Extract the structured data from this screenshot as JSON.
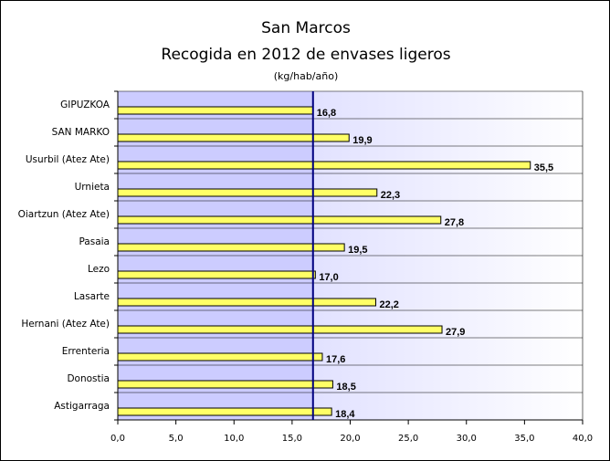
{
  "title": "San Marcos",
  "subtitle": "Recogida en 2012 de envases ligeros",
  "unit": "(kg/hab/año)",
  "colors": {
    "bar_fill": "#ffff66",
    "reference_line": "#000080",
    "plot_band": "#ccccff"
  },
  "chart_data": {
    "type": "bar",
    "orientation": "horizontal",
    "categories": [
      "GIPUZKOA",
      "SAN MARKO",
      "Usurbil (Atez Ate)",
      "Urnieta",
      "Oiartzun (Atez Ate)",
      "Pasaia",
      "Lezo",
      "Lasarte",
      "Hernani (Atez Ate)",
      "Errenteria",
      "Donostia",
      "Astigarraga"
    ],
    "values": [
      16.8,
      19.9,
      35.5,
      22.3,
      27.8,
      19.5,
      17.0,
      22.2,
      27.9,
      17.6,
      18.5,
      18.4
    ],
    "value_labels": [
      "16,8",
      "19,9",
      "35,5",
      "22,3",
      "27,8",
      "19,5",
      "17,0",
      "22,2",
      "27,9",
      "17,6",
      "18,5",
      "18,4"
    ],
    "reference_line": 16.8,
    "xlim": [
      0,
      40
    ],
    "xticks": [
      "0,0",
      "5,0",
      "10,0",
      "15,0",
      "20,0",
      "25,0",
      "30,0",
      "35,0",
      "40,0"
    ],
    "grid": true,
    "legend": "none"
  }
}
